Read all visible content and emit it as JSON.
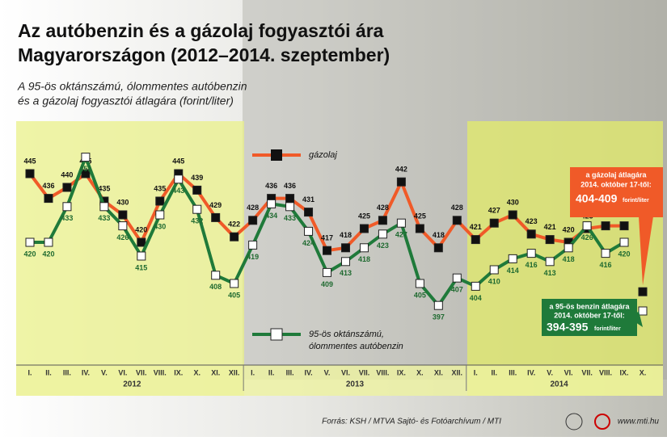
{
  "chart_data": {
    "type": "line",
    "title": [
      "Az autóbenzin és a gázolaj fogyasztói ára",
      "Magyarországon (2012–2014. szeptember)"
    ],
    "subtitle": [
      "A 95-ös oktánszámú, ólommentes autóbenzin",
      "és a gázolaj fogyasztói átlagára (forint/liter)"
    ],
    "categories": [
      "I.",
      "II.",
      "III.",
      "IV.",
      "V.",
      "VI.",
      "VII.",
      "VIII.",
      "IX.",
      "X.",
      "XI.",
      "XII.",
      "I.",
      "II.",
      "III.",
      "IV.",
      "V.",
      "VI.",
      "VII.",
      "VIII.",
      "IX.",
      "X.",
      "XI.",
      "XII.",
      "I.",
      "II.",
      "III.",
      "IV.",
      "V.",
      "VI.",
      "VII.",
      "VIII.",
      "IX.",
      "X."
    ],
    "years": [
      {
        "label": "2012",
        "start": 0,
        "end": 11
      },
      {
        "label": "2013",
        "start": 12,
        "end": 23
      },
      {
        "label": "2014",
        "start": 24,
        "end": 33
      }
    ],
    "ylim": [
      385,
      455
    ],
    "series": [
      {
        "name": "gázolaj",
        "color": "#f05a28",
        "marker": "#111111",
        "values": [
          445,
          436,
          440,
          445,
          435,
          430,
          420,
          435,
          445,
          439,
          429,
          422,
          428,
          436,
          436,
          431,
          417,
          418,
          425,
          428,
          442,
          425,
          418,
          428,
          421,
          427,
          430,
          423,
          421,
          420,
          425,
          426,
          426,
          402
        ]
      },
      {
        "name": [
          "95-ös oktánszámú,",
          "ólommentes autóbenzin"
        ],
        "color": "#1f7a3a",
        "marker": "#ffffff",
        "values": [
          420,
          420,
          433,
          451,
          433,
          426,
          415,
          430,
          443,
          432,
          408,
          405,
          419,
          434,
          433,
          424,
          409,
          413,
          418,
          423,
          427,
          405,
          397,
          407,
          404,
          410,
          414,
          416,
          413,
          418,
          426,
          416,
          420,
          395
        ]
      }
    ],
    "callouts": [
      {
        "text": [
          "a gázolaj átlagára",
          "2014. október 17-től:"
        ],
        "range": "404-409",
        "unit": "forint/liter"
      },
      {
        "text": [
          "a 95-ös benzin átlagára",
          "2014. október 17-től:"
        ],
        "range": "394-395",
        "unit": "forint/liter"
      }
    ],
    "source": "Forrás: KSH / MTVA Sajtó- és Fotóarchívum / MTI",
    "website": "www.mti.hu"
  }
}
